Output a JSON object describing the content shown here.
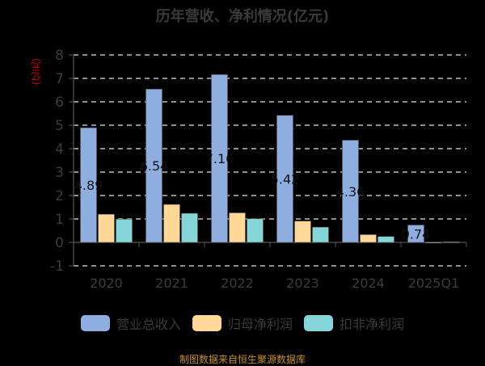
{
  "title": "历年营收、净利情况(亿元)",
  "source": "制图数据来自恒生聚源数据库",
  "chart_data": {
    "type": "bar",
    "title": "历年营收、净利情况(亿元)",
    "xlabel": "",
    "ylabel": "(亿元)",
    "ylim": [
      -1,
      8
    ],
    "yticks": [
      -1,
      0,
      1,
      2,
      3,
      4,
      5,
      6,
      7,
      8
    ],
    "grid": true,
    "legend_position": "bottom",
    "categories": [
      "2020",
      "2021",
      "2022",
      "2023",
      "2024",
      "2025Q1"
    ],
    "series": [
      {
        "name": "营业总收入",
        "color": "#8eaee0",
        "values": [
          4.89,
          6.54,
          7.16,
          5.42,
          4.36,
          0.74
        ]
      },
      {
        "name": "归母净利润",
        "color": "#ffd898",
        "values": [
          1.2,
          1.62,
          1.26,
          0.91,
          0.33,
          0.01
        ]
      },
      {
        "name": "扣非净利润",
        "color": "#84d6d8",
        "values": [
          0.99,
          1.24,
          1.01,
          0.65,
          0.25,
          0.02
        ]
      }
    ],
    "data_labels": [
      "4.89",
      "6.54",
      "7.16",
      "5.42",
      "4.36",
      "0.74"
    ]
  },
  "legend": [
    {
      "label": "营业总收入",
      "color": "#8eaee0"
    },
    {
      "label": "归母净利润",
      "color": "#ffd898"
    },
    {
      "label": "扣非净利润",
      "color": "#84d6d8"
    }
  ]
}
